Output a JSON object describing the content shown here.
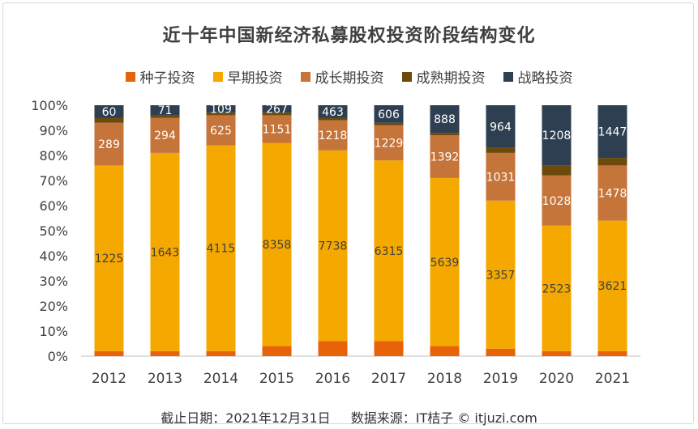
{
  "footer": {
    "date": "截止日期：2021年12月31日",
    "source": "数据来源：IT桔子 © itjuzi.com"
  },
  "chart_data": {
    "type": "bar",
    "stacked": true,
    "percent": true,
    "title": "近十年中国新经济私募股权投资阶段结构变化",
    "legend_position": "top",
    "grid": false,
    "categories": [
      "2012",
      "2013",
      "2014",
      "2015",
      "2016",
      "2017",
      "2018",
      "2019",
      "2020",
      "2021"
    ],
    "y_ticks": [
      "0%",
      "10%",
      "20%",
      "30%",
      "40%",
      "50%",
      "60%",
      "70%",
      "80%",
      "90%",
      "100%"
    ],
    "ylim": [
      0,
      100
    ],
    "series": [
      {
        "name": "种子投资",
        "color": "#e8620a",
        "values": [
          2,
          2,
          2,
          4,
          6,
          6,
          4,
          3,
          2,
          2
        ],
        "labels": [
          "",
          "",
          "",
          "",
          "",
          "",
          "",
          "",
          "",
          ""
        ]
      },
      {
        "name": "早期投资",
        "color": "#f5a800",
        "values": [
          74,
          79,
          82,
          81,
          76,
          72,
          67,
          59,
          50,
          52
        ],
        "labels": [
          "1225",
          "1643",
          "4115",
          "8358",
          "7738",
          "6315",
          "5639",
          "3357",
          "2523",
          "3621"
        ]
      },
      {
        "name": "成长期投资",
        "color": "#c5743a",
        "values": [
          17,
          14,
          12,
          11,
          12,
          14,
          17,
          19,
          20,
          22
        ],
        "labels": [
          "289",
          "294",
          "625",
          "1151",
          "1218",
          "1229",
          "1392",
          "1031",
          "1028",
          "1478"
        ]
      },
      {
        "name": "成熟期投资",
        "color": "#6b4a0c",
        "values": [
          2,
          1,
          1,
          1,
          1,
          1,
          1,
          2,
          4,
          3
        ],
        "labels": [
          "",
          "",
          "",
          "",
          "",
          "",
          "",
          "",
          "",
          ""
        ]
      },
      {
        "name": "战略投资",
        "color": "#2e3f52",
        "values": [
          5,
          4,
          3,
          3,
          5,
          7,
          11,
          17,
          24,
          21
        ],
        "labels": [
          "60",
          "71",
          "109",
          "267",
          "463",
          "606",
          "888",
          "964",
          "1208",
          "1447"
        ]
      }
    ]
  }
}
